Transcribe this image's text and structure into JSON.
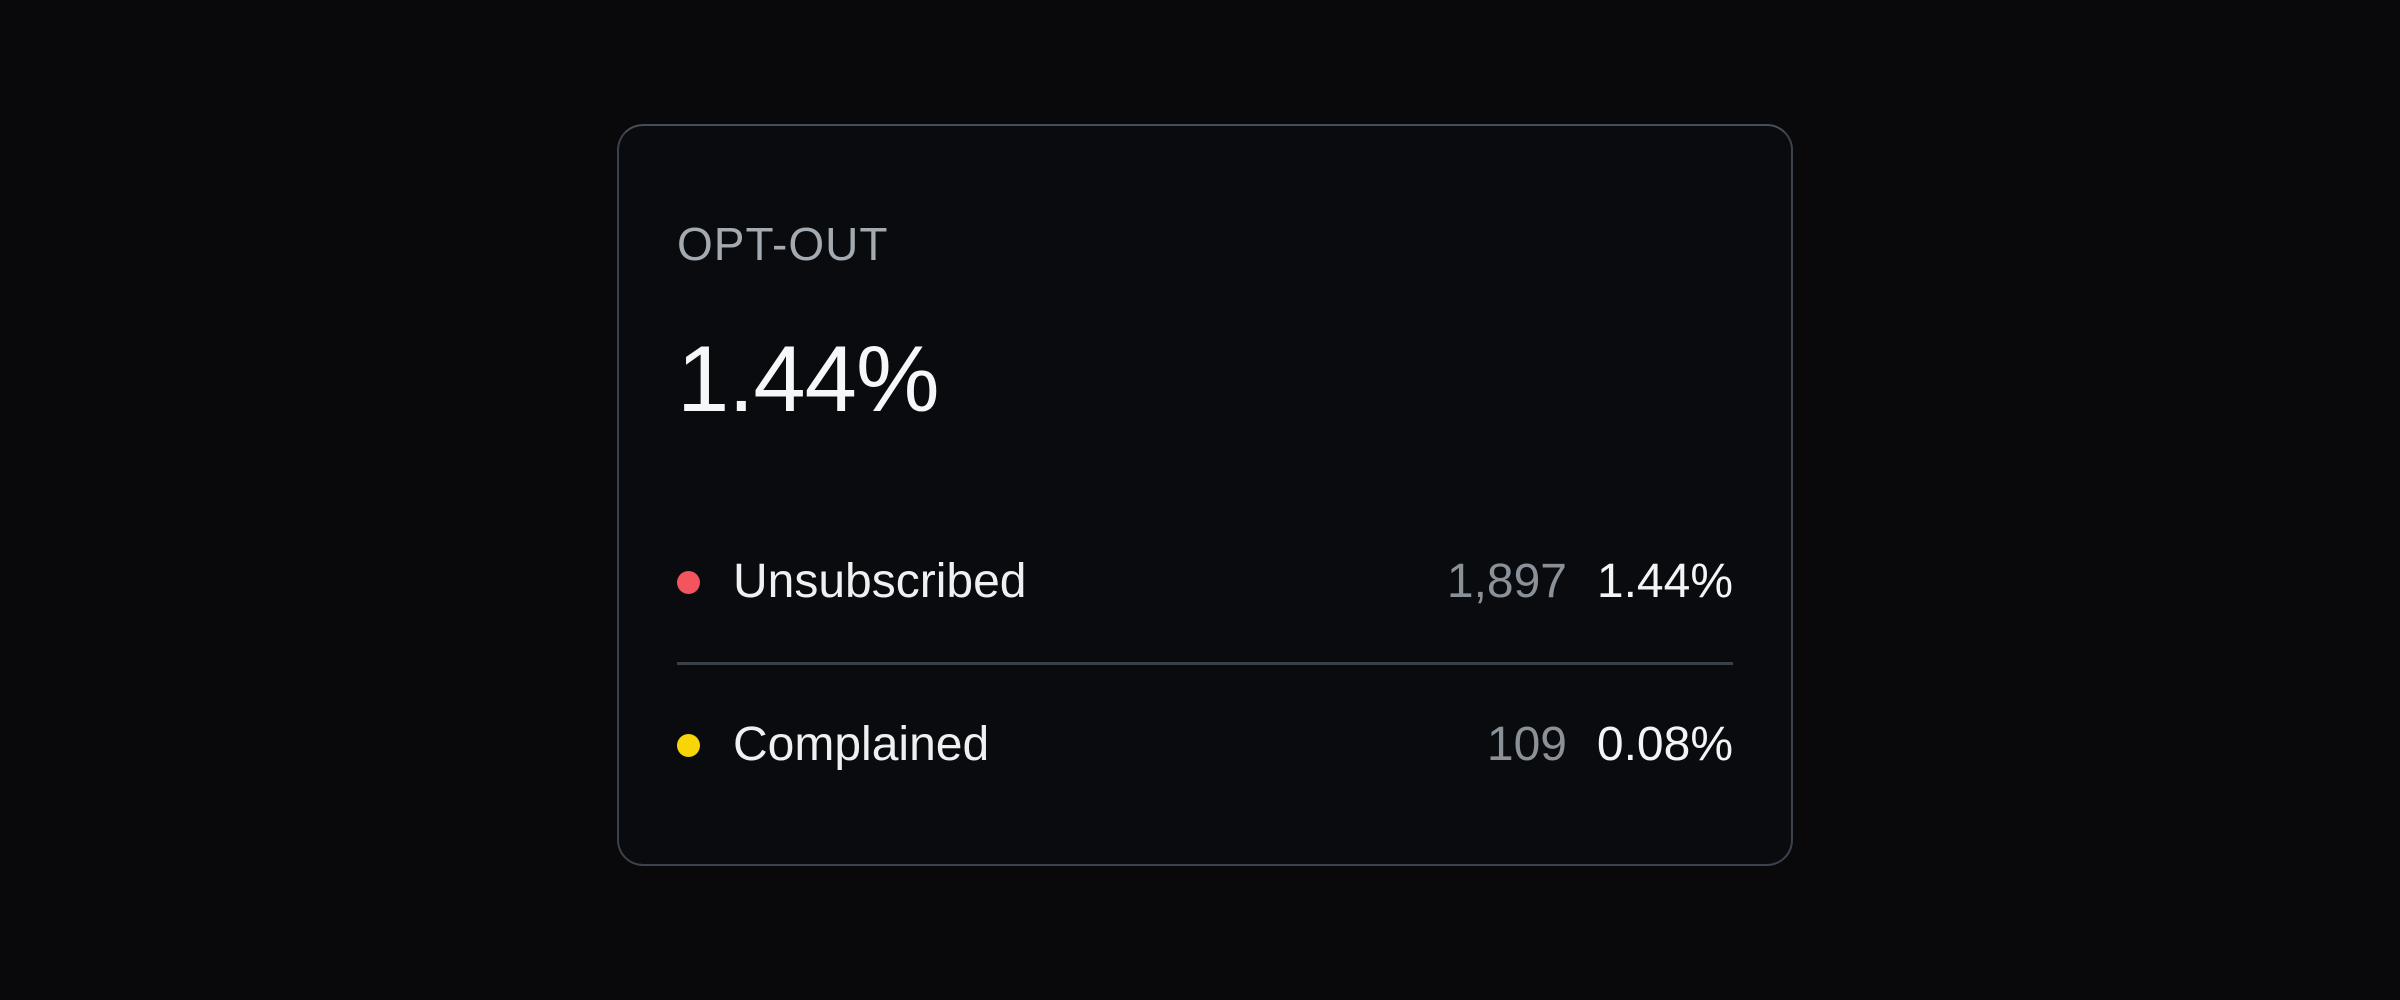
{
  "page": {
    "background_color": "#09090b"
  },
  "card": {
    "label": "OPT-OUT",
    "value": "1.44%",
    "background_color": "#0a0b0e",
    "border_color": "#3b424b",
    "divider_color": "#3a4047",
    "rows": [
      {
        "name": "Unsubscribed",
        "count": "1,897",
        "pct": "1.44%",
        "dot_color": "#f2555d"
      },
      {
        "name": "Complained",
        "count": "109",
        "pct": "0.08%",
        "dot_color": "#f8d508"
      }
    ]
  },
  "colors": {
    "kpi_label": "#a4aab1",
    "kpi_value": "#f6f7f8",
    "row_label": "#eef0f2",
    "row_count": "#8b9198",
    "row_pct": "#f2f4f6"
  }
}
